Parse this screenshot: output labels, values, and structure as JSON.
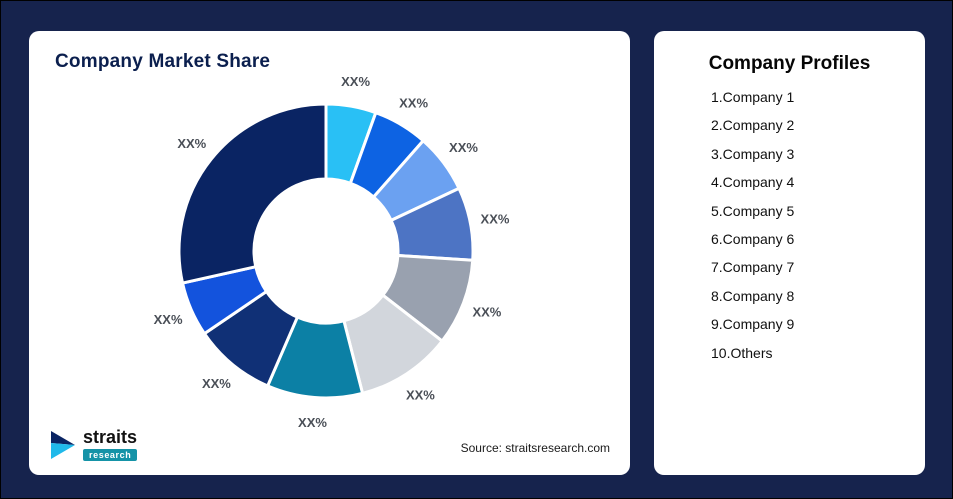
{
  "window": {
    "background": "#16234d"
  },
  "market_share_card": {
    "title": "Company Market Share",
    "source_text": "Source: straitsresearch.com",
    "logo": {
      "brand": "straits",
      "sub_brand": "research",
      "icon_dark_color": "#0a2463",
      "icon_cyan_color": "#20b9ea",
      "sub_badge_color": "#1593a7"
    }
  },
  "profiles_card": {
    "title": "Company Profiles",
    "items": [
      "1.Company 1",
      "2.Company 2",
      "3.Company 3",
      "4.Company 4",
      "5.Company 5",
      "6.Company 6",
      "7.Company 7",
      "8.Company 8",
      "9.Company 9",
      "10.Others"
    ]
  },
  "chart_data": {
    "type": "pie",
    "subtype": "donut",
    "title": "Company Market Share",
    "start_angle_deg": 0,
    "direction": "clockwise",
    "inner_radius_ratio": 0.49,
    "legend": "none",
    "label_text_all": "XX%",
    "segments": [
      {
        "name": "Company 1",
        "value": 5.5,
        "label": "XX%",
        "color": "#29c0f5"
      },
      {
        "name": "Company 2",
        "value": 6,
        "label": "XX%",
        "color": "#0d63e3"
      },
      {
        "name": "Company 3",
        "value": 6.5,
        "label": "XX%",
        "color": "#6ba1f1"
      },
      {
        "name": "Company 4",
        "value": 8,
        "label": "XX%",
        "color": "#4d74c4"
      },
      {
        "name": "Company 5",
        "value": 9.5,
        "label": "XX%",
        "color": "#99a1af"
      },
      {
        "name": "Company 6",
        "value": 10.5,
        "label": "XX%",
        "color": "#d2d6dc"
      },
      {
        "name": "Company 7",
        "value": 10.5,
        "label": "XX%",
        "color": "#0c80a5"
      },
      {
        "name": "Company 8",
        "value": 9,
        "label": "XX%",
        "color": "#103076"
      },
      {
        "name": "Company 9",
        "value": 6,
        "label": "XX%",
        "color": "#1353dd"
      },
      {
        "name": "Others",
        "value": 28.5,
        "label": "XX%",
        "color": "#0a2463"
      }
    ]
  }
}
